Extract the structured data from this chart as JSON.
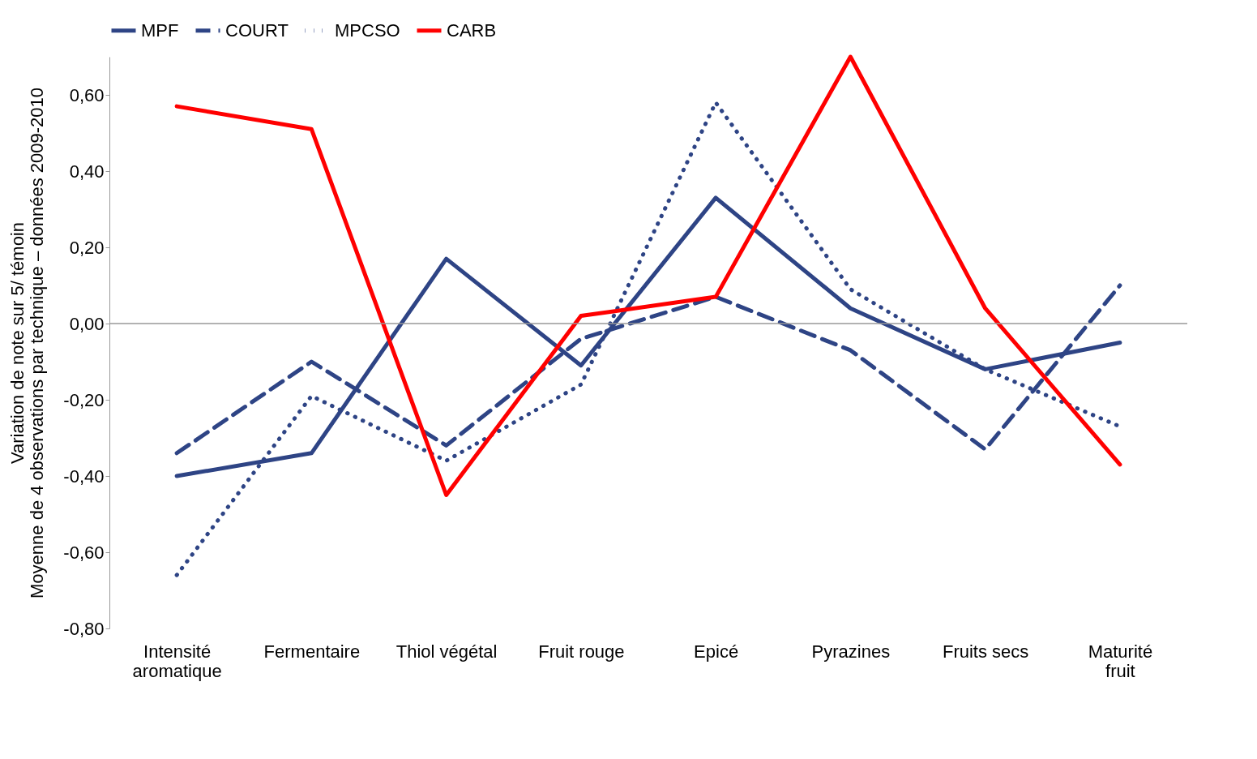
{
  "chart_data": {
    "type": "line",
    "ylabel": "Variation de note sur 5/ témoin\nMoyenne de 4 observations par technique – données 2009-2010",
    "categories": [
      "Intensité\naromatique",
      "Fermentaire",
      "Thiol végétal",
      "Fruit rouge",
      "Epicé",
      "Pyrazines",
      "Fruits secs",
      "Maturité\nfruit"
    ],
    "series": [
      {
        "name": "MPF",
        "color": "#2e4485",
        "line_style": "solid",
        "values": [
          -0.4,
          -0.34,
          0.17,
          -0.11,
          0.33,
          0.04,
          -0.12,
          -0.05
        ]
      },
      {
        "name": "COURT",
        "color": "#2e4485",
        "line_style": "dashed",
        "values": [
          -0.34,
          -0.1,
          -0.32,
          -0.04,
          0.07,
          -0.07,
          -0.33,
          0.1
        ]
      },
      {
        "name": "MPCSO",
        "color": "#2e4485",
        "line_style": "dotted",
        "values": [
          -0.66,
          -0.19,
          -0.36,
          -0.16,
          0.58,
          0.09,
          -0.12,
          -0.27
        ]
      },
      {
        "name": "CARB",
        "color": "#ff0000",
        "line_style": "solid",
        "values": [
          0.57,
          0.51,
          -0.45,
          0.02,
          0.07,
          0.7,
          0.04,
          -0.37
        ]
      }
    ],
    "ylim": [
      -0.8,
      0.7
    ],
    "yticks": [
      {
        "value": -0.8,
        "label": "-0,80"
      },
      {
        "value": -0.6,
        "label": "-0,60"
      },
      {
        "value": -0.4,
        "label": "-0,40"
      },
      {
        "value": -0.2,
        "label": "-0,20"
      },
      {
        "value": 0,
        "label": "0,00"
      },
      {
        "value": 0.2,
        "label": "0,20"
      },
      {
        "value": 0.4,
        "label": "0,40"
      },
      {
        "value": 0.6,
        "label": "0,60"
      }
    ],
    "ref_lines": [
      {
        "axis": "y",
        "value": 0,
        "label": null,
        "color": "#999999"
      }
    ],
    "grid": false,
    "legend": "top",
    "marker": "none"
  }
}
